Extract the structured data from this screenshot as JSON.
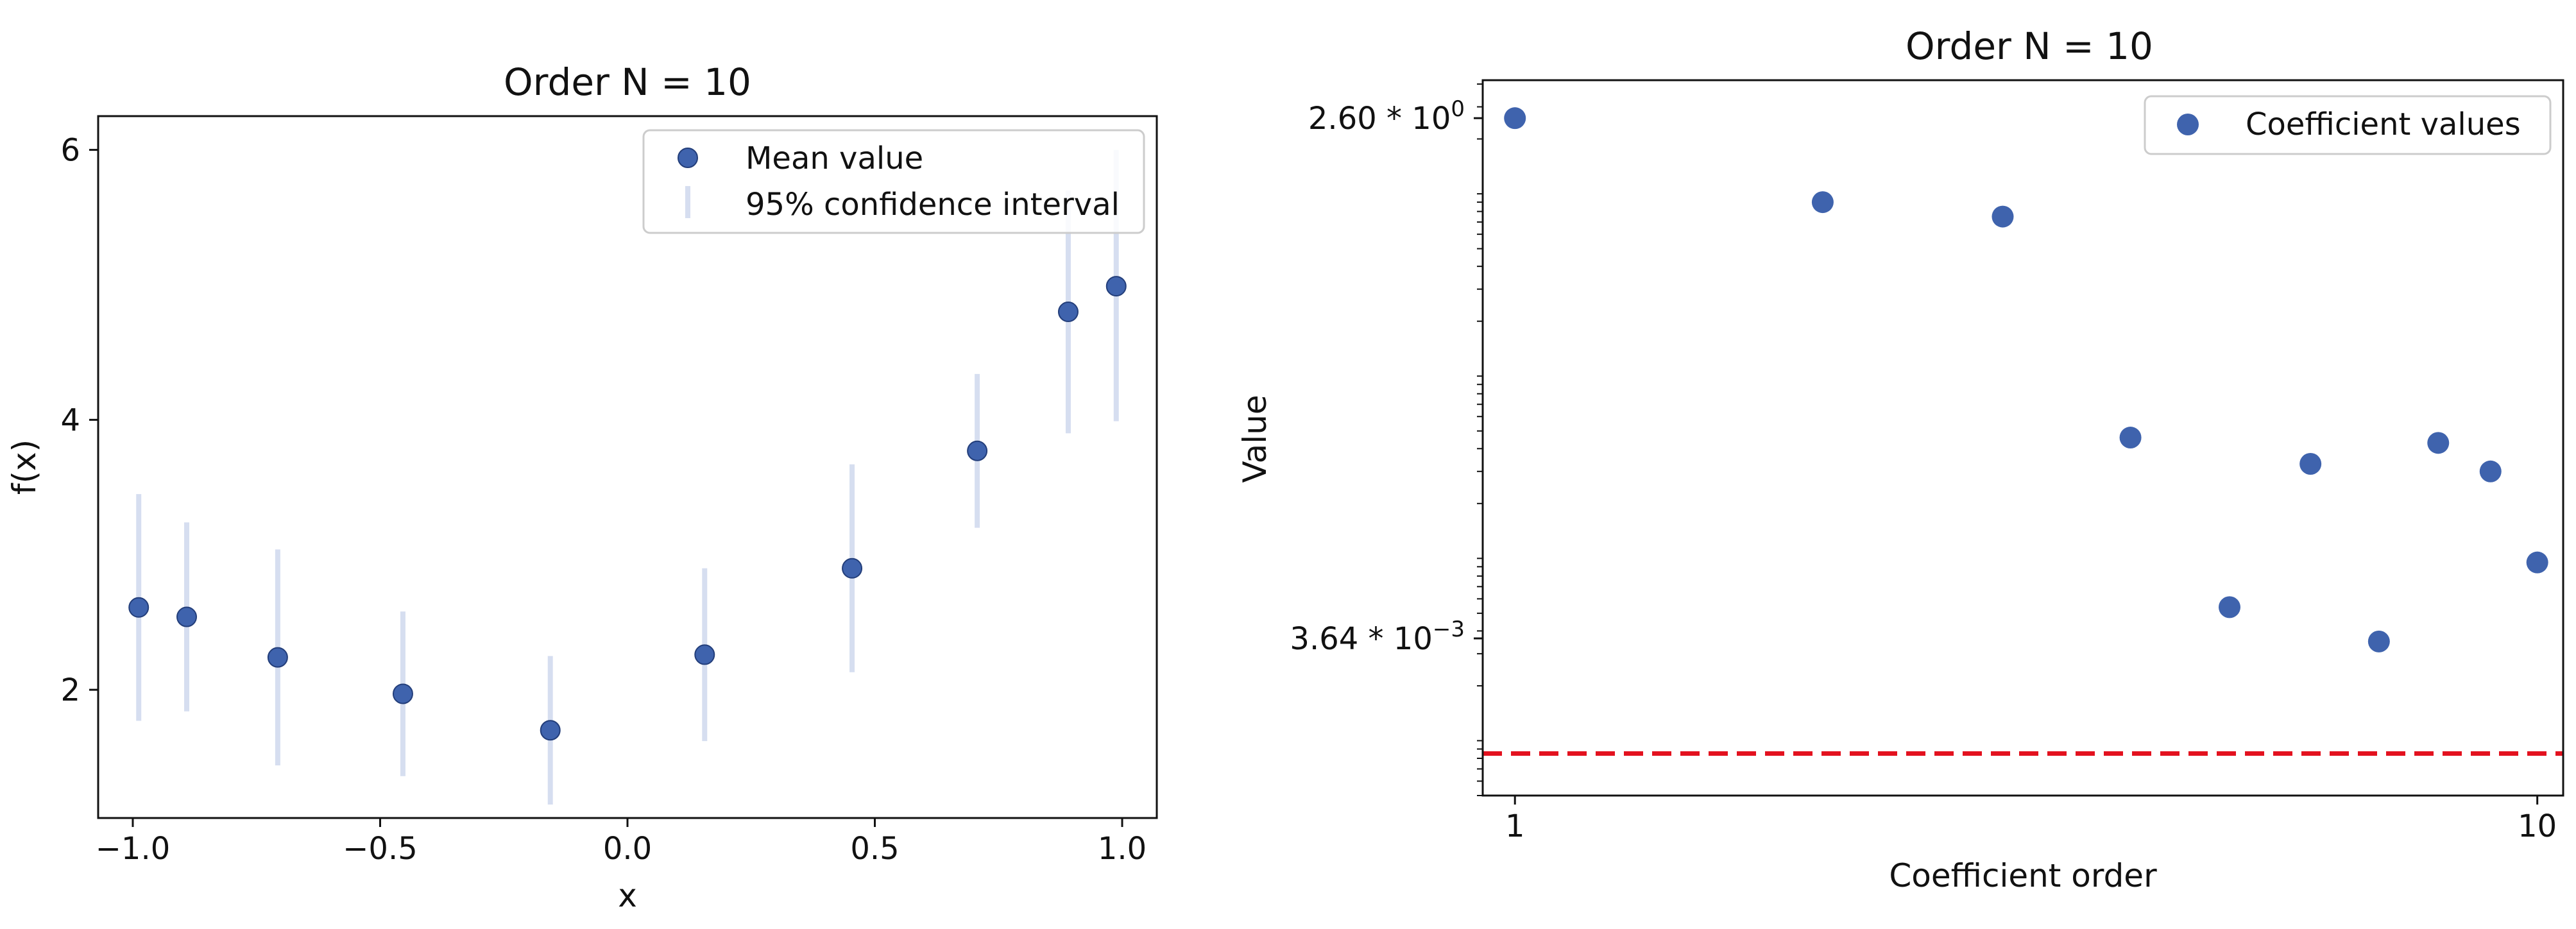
{
  "chart_data": [
    {
      "type": "scatter",
      "title": "Order N = 10",
      "xlabel": "x",
      "ylabel": "f(x)",
      "xlim": [
        -1.07,
        1.07
      ],
      "ylim": [
        1.05,
        6.25
      ],
      "xticks": [
        -1.0,
        -0.5,
        0.0,
        0.5,
        1.0
      ],
      "xtick_labels": [
        "−1.0",
        "−0.5",
        "0.0",
        "0.5",
        "1.0"
      ],
      "yticks": [
        2,
        4,
        6
      ],
      "ytick_labels": [
        "2",
        "4",
        "6"
      ],
      "legend": {
        "position": "top-right",
        "entries": [
          "Mean value",
          "95% confidence interval"
        ]
      },
      "colors": {
        "marker": "#3f63ad",
        "marker_edge": "#233e7a",
        "errorbar": "#d6def0"
      },
      "series": [
        {
          "name": "Mean value",
          "x": [
            -0.988,
            -0.891,
            -0.707,
            -0.454,
            -0.156,
            0.156,
            0.454,
            0.707,
            0.891,
            0.988
          ],
          "y": [
            2.61,
            2.54,
            2.24,
            1.97,
            1.7,
            2.26,
            2.9,
            3.77,
            4.8,
            4.99
          ],
          "ci_low": [
            1.77,
            1.84,
            1.44,
            1.36,
            1.15,
            1.62,
            2.13,
            3.2,
            3.9,
            3.99
          ],
          "ci_high": [
            3.45,
            3.24,
            3.04,
            2.58,
            2.25,
            2.9,
            3.67,
            4.34,
            5.7,
            6.0
          ]
        }
      ]
    },
    {
      "type": "scatter",
      "title": "Order N = 10",
      "xlabel": "Coefficient order",
      "ylabel": "Value",
      "xscale": "log",
      "yscale": "log",
      "xlim": [
        0.93,
        10.6
      ],
      "ylim": [
        0.0005,
        4.2
      ],
      "xticks": [
        1,
        10
      ],
      "xtick_labels": [
        "1",
        "10"
      ],
      "ytick_labels": [
        {
          "value": 2.6,
          "mantissa": "2.60 * 10",
          "exponent": "0"
        },
        {
          "value": 0.00364,
          "mantissa": "3.64 * 10",
          "exponent": "−3"
        }
      ],
      "threshold_line": {
        "value": 0.00085,
        "style": "dashed",
        "color": "#e3121f"
      },
      "legend": {
        "position": "top-right",
        "entries": [
          "Coefficient values"
        ]
      },
      "colors": {
        "marker": "#3f63ad",
        "marker_edge": "#3f63ad"
      },
      "series": [
        {
          "name": "Coefficient values",
          "x": [
            1,
            2,
            3,
            4,
            5,
            6,
            7,
            8,
            9,
            10
          ],
          "y": [
            2.6,
            0.9,
            0.75,
            0.046,
            0.0054,
            0.033,
            0.0035,
            0.043,
            0.03,
            0.0095
          ]
        }
      ]
    }
  ]
}
